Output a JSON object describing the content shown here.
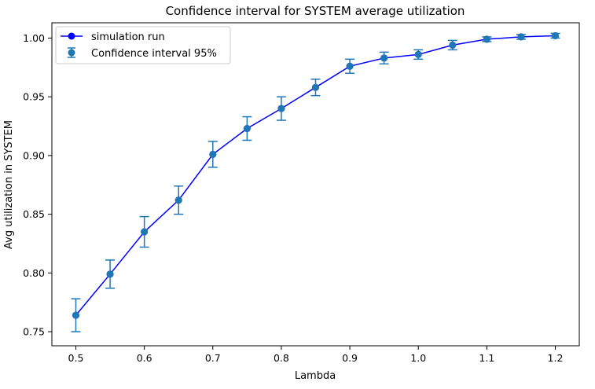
{
  "chart_data": {
    "type": "line",
    "title": "Confidence interval for SYSTEM average utilization",
    "xlabel": "Lambda",
    "ylabel": "Avg utilization in SYSTEM",
    "xlim": [
      0.465,
      1.235
    ],
    "ylim": [
      0.738,
      1.013
    ],
    "xticks": [
      "0.5",
      "0.6",
      "0.7",
      "0.8",
      "0.9",
      "1.0",
      "1.1",
      "1.2"
    ],
    "yticks": [
      "0.75",
      "0.80",
      "0.85",
      "0.90",
      "0.95",
      "1.00"
    ],
    "grid": false,
    "legend_position": "top-left",
    "series": [
      {
        "name": "simulation run",
        "color": "#0000ff",
        "marker": "circle",
        "x": [
          0.5,
          0.55,
          0.6,
          0.65,
          0.7,
          0.75,
          0.8,
          0.85,
          0.9,
          0.95,
          1.0,
          1.05,
          1.1,
          1.15,
          1.2
        ],
        "y": [
          0.764,
          0.799,
          0.835,
          0.862,
          0.901,
          0.923,
          0.94,
          0.958,
          0.976,
          0.983,
          0.986,
          0.994,
          0.999,
          1.001,
          1.002
        ]
      },
      {
        "name": "Confidence interval 95%",
        "color": "#1f77b4",
        "marker": "circle",
        "x": [
          0.5,
          0.55,
          0.6,
          0.65,
          0.7,
          0.75,
          0.8,
          0.85,
          0.9,
          0.95,
          1.0,
          1.05,
          1.1,
          1.15,
          1.2
        ],
        "y": [
          0.764,
          0.799,
          0.835,
          0.862,
          0.901,
          0.923,
          0.94,
          0.958,
          0.976,
          0.983,
          0.986,
          0.994,
          0.999,
          1.001,
          1.002
        ],
        "error": [
          0.014,
          0.012,
          0.013,
          0.012,
          0.011,
          0.01,
          0.01,
          0.007,
          0.006,
          0.005,
          0.004,
          0.004,
          0.002,
          0.002,
          0.002
        ]
      }
    ]
  }
}
